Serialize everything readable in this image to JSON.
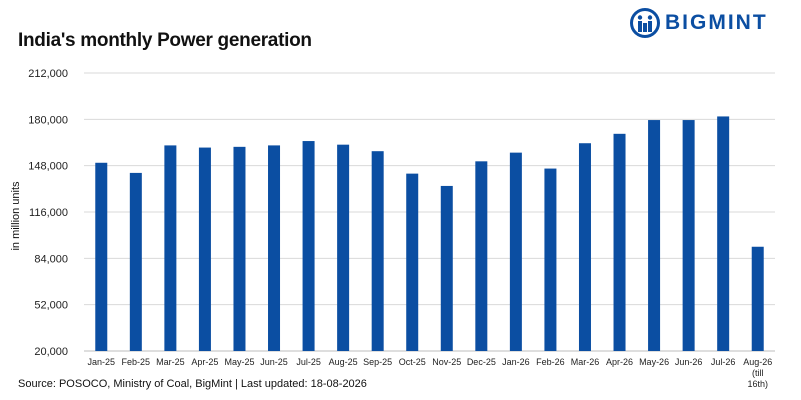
{
  "brand": {
    "name": "BIGMINT",
    "color": "#0b4ea2"
  },
  "chart_data": {
    "type": "bar",
    "title": "India's monthly Power generation",
    "ylabel": "in million units",
    "xlabel": "",
    "ylim": [
      20000,
      212000
    ],
    "yticks": [
      "20,000",
      "52,000",
      "84,000",
      "116,000",
      "148,000",
      "180,000",
      "212,000"
    ],
    "ytick_values": [
      20000,
      52000,
      84000,
      116000,
      148000,
      180000,
      212000
    ],
    "grid": true,
    "bar_color": "#0b4ea2",
    "categories": [
      [
        "Jan-25"
      ],
      [
        "Feb-25"
      ],
      [
        "Mar-25"
      ],
      [
        "Apr-25"
      ],
      [
        "May-25"
      ],
      [
        "Jun-25"
      ],
      [
        "Jul-25"
      ],
      [
        "Aug-25"
      ],
      [
        "Sep-25"
      ],
      [
        "Oct-25"
      ],
      [
        "Nov-25"
      ],
      [
        "Dec-25"
      ],
      [
        "Jan-26"
      ],
      [
        "Feb-26"
      ],
      [
        "Mar-26"
      ],
      [
        "Apr-26"
      ],
      [
        "May-26"
      ],
      [
        "Jun-26"
      ],
      [
        "Jul-26"
      ],
      [
        "Aug-26",
        "(till",
        "16th)"
      ]
    ],
    "values": [
      150000,
      143000,
      162000,
      160500,
      161000,
      162000,
      165000,
      162500,
      158000,
      142500,
      134000,
      151000,
      157000,
      146000,
      163500,
      170000,
      179500,
      179500,
      182000,
      92000
    ]
  },
  "source": "Source: POSOCO, Ministry of Coal, BigMint | Last updated: 18-08-2026"
}
